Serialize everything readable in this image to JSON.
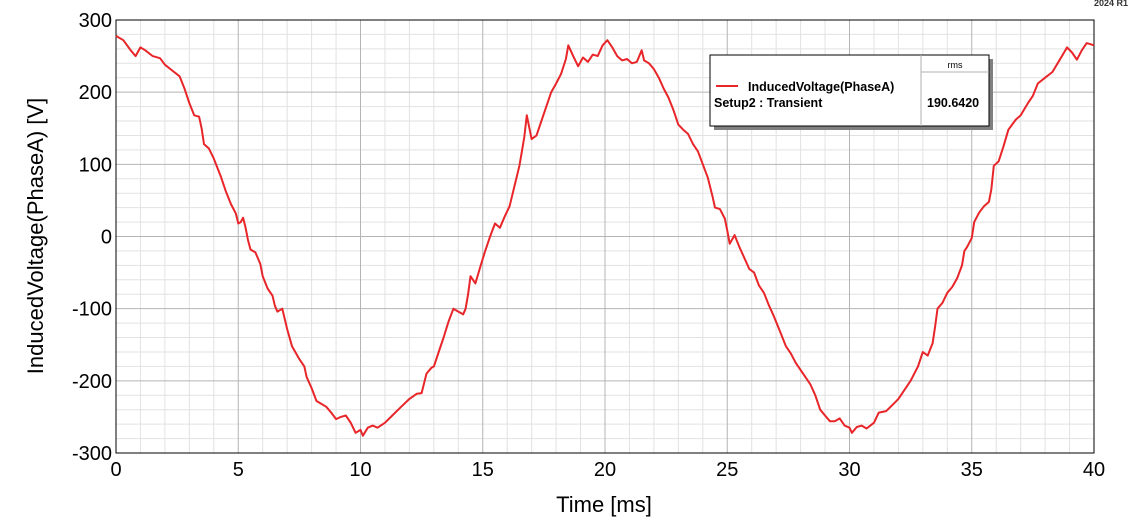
{
  "version_label": "2024 R1",
  "chart_data": {
    "type": "line",
    "title": "",
    "xlabel": "Time [ms]",
    "ylabel": "InducedVoltage(PhaseA) [V]",
    "xlim": [
      0,
      40
    ],
    "ylim": [
      -300,
      300
    ],
    "x_ticks": [
      0,
      5,
      10,
      15,
      20,
      25,
      30,
      35,
      40
    ],
    "y_ticks": [
      -300,
      -200,
      -100,
      0,
      100,
      200,
      300
    ],
    "x_tick_labels": [
      "0",
      "5",
      "10",
      "15",
      "20",
      "25",
      "30",
      "35",
      "40"
    ],
    "y_tick_labels": [
      "-300",
      "-200",
      "-100",
      "0",
      "100",
      "200",
      "300"
    ],
    "grid": true,
    "legend_position": "top-right",
    "series": [
      {
        "name": "InducedVoltage(PhaseA)",
        "color": "#e8262a",
        "points": [
          [
            0,
            278
          ],
          [
            0.3,
            272
          ],
          [
            0.6,
            258
          ],
          [
            0.8,
            250
          ],
          [
            1.0,
            262
          ],
          [
            1.2,
            258
          ],
          [
            1.5,
            250
          ],
          [
            1.8,
            247
          ],
          [
            2.0,
            238
          ],
          [
            2.3,
            230
          ],
          [
            2.6,
            222
          ],
          [
            2.8,
            205
          ],
          [
            3.0,
            185
          ],
          [
            3.2,
            168
          ],
          [
            3.4,
            166
          ],
          [
            3.5,
            150
          ],
          [
            3.6,
            128
          ],
          [
            3.8,
            122
          ],
          [
            4.0,
            108
          ],
          [
            4.3,
            82
          ],
          [
            4.5,
            62
          ],
          [
            4.7,
            45
          ],
          [
            4.9,
            32
          ],
          [
            5.0,
            18
          ],
          [
            5.1,
            20
          ],
          [
            5.2,
            26
          ],
          [
            5.3,
            12
          ],
          [
            5.4,
            -5
          ],
          [
            5.5,
            -18
          ],
          [
            5.7,
            -22
          ],
          [
            5.9,
            -38
          ],
          [
            6.0,
            -55
          ],
          [
            6.2,
            -72
          ],
          [
            6.4,
            -82
          ],
          [
            6.5,
            -96
          ],
          [
            6.6,
            -104
          ],
          [
            6.8,
            -100
          ],
          [
            7.0,
            -128
          ],
          [
            7.2,
            -152
          ],
          [
            7.5,
            -170
          ],
          [
            7.7,
            -180
          ],
          [
            7.8,
            -195
          ],
          [
            8.0,
            -210
          ],
          [
            8.2,
            -228
          ],
          [
            8.4,
            -232
          ],
          [
            8.6,
            -236
          ],
          [
            8.8,
            -244
          ],
          [
            9.0,
            -253
          ],
          [
            9.2,
            -250
          ],
          [
            9.4,
            -248
          ],
          [
            9.6,
            -258
          ],
          [
            9.8,
            -272
          ],
          [
            10.0,
            -268
          ],
          [
            10.1,
            -276
          ],
          [
            10.3,
            -265
          ],
          [
            10.5,
            -262
          ],
          [
            10.7,
            -265
          ],
          [
            11.0,
            -258
          ],
          [
            11.3,
            -248
          ],
          [
            11.6,
            -238
          ],
          [
            12.0,
            -225
          ],
          [
            12.3,
            -218
          ],
          [
            12.5,
            -217
          ],
          [
            12.7,
            -190
          ],
          [
            12.9,
            -182
          ],
          [
            13.0,
            -180
          ],
          [
            13.2,
            -160
          ],
          [
            13.4,
            -140
          ],
          [
            13.6,
            -118
          ],
          [
            13.8,
            -100
          ],
          [
            14.0,
            -104
          ],
          [
            14.2,
            -108
          ],
          [
            14.3,
            -100
          ],
          [
            14.4,
            -80
          ],
          [
            14.5,
            -55
          ],
          [
            14.7,
            -65
          ],
          [
            14.9,
            -42
          ],
          [
            15.1,
            -20
          ],
          [
            15.3,
            0
          ],
          [
            15.5,
            18
          ],
          [
            15.7,
            12
          ],
          [
            15.9,
            28
          ],
          [
            16.1,
            42
          ],
          [
            16.3,
            70
          ],
          [
            16.5,
            98
          ],
          [
            16.6,
            118
          ],
          [
            16.7,
            138
          ],
          [
            16.8,
            168
          ],
          [
            17.0,
            135
          ],
          [
            17.2,
            140
          ],
          [
            17.4,
            160
          ],
          [
            17.6,
            180
          ],
          [
            17.8,
            200
          ],
          [
            18.0,
            212
          ],
          [
            18.2,
            225
          ],
          [
            18.4,
            246
          ],
          [
            18.5,
            265
          ],
          [
            18.7,
            250
          ],
          [
            18.9,
            236
          ],
          [
            19.1,
            248
          ],
          [
            19.3,
            242
          ],
          [
            19.5,
            252
          ],
          [
            19.7,
            250
          ],
          [
            19.9,
            265
          ],
          [
            20.1,
            272
          ],
          [
            20.3,
            262
          ],
          [
            20.5,
            250
          ],
          [
            20.7,
            244
          ],
          [
            20.9,
            246
          ],
          [
            21.1,
            240
          ],
          [
            21.3,
            242
          ],
          [
            21.5,
            258
          ],
          [
            21.6,
            244
          ],
          [
            21.8,
            240
          ],
          [
            22.0,
            232
          ],
          [
            22.2,
            220
          ],
          [
            22.4,
            205
          ],
          [
            22.6,
            192
          ],
          [
            22.8,
            175
          ],
          [
            23.0,
            155
          ],
          [
            23.2,
            148
          ],
          [
            23.4,
            142
          ],
          [
            23.6,
            128
          ],
          [
            23.8,
            118
          ],
          [
            24.0,
            100
          ],
          [
            24.2,
            82
          ],
          [
            24.4,
            55
          ],
          [
            24.5,
            40
          ],
          [
            24.7,
            38
          ],
          [
            24.9,
            25
          ],
          [
            25.0,
            8
          ],
          [
            25.1,
            -10
          ],
          [
            25.3,
            2
          ],
          [
            25.5,
            -15
          ],
          [
            25.7,
            -30
          ],
          [
            25.9,
            -45
          ],
          [
            26.1,
            -50
          ],
          [
            26.3,
            -68
          ],
          [
            26.5,
            -78
          ],
          [
            26.7,
            -95
          ],
          [
            26.9,
            -110
          ],
          [
            27.2,
            -135
          ],
          [
            27.4,
            -152
          ],
          [
            27.6,
            -162
          ],
          [
            27.8,
            -175
          ],
          [
            28.0,
            -185
          ],
          [
            28.2,
            -195
          ],
          [
            28.4,
            -205
          ],
          [
            28.6,
            -220
          ],
          [
            28.8,
            -240
          ],
          [
            29.0,
            -248
          ],
          [
            29.2,
            -256
          ],
          [
            29.4,
            -256
          ],
          [
            29.6,
            -252
          ],
          [
            29.8,
            -262
          ],
          [
            30.0,
            -265
          ],
          [
            30.1,
            -272
          ],
          [
            30.3,
            -264
          ],
          [
            30.5,
            -262
          ],
          [
            30.7,
            -266
          ],
          [
            31.0,
            -258
          ],
          [
            31.2,
            -244
          ],
          [
            31.5,
            -242
          ],
          [
            31.8,
            -232
          ],
          [
            32.0,
            -225
          ],
          [
            32.2,
            -215
          ],
          [
            32.5,
            -200
          ],
          [
            32.8,
            -180
          ],
          [
            33.0,
            -160
          ],
          [
            33.2,
            -165
          ],
          [
            33.4,
            -148
          ],
          [
            33.5,
            -125
          ],
          [
            33.6,
            -100
          ],
          [
            33.8,
            -92
          ],
          [
            34.0,
            -78
          ],
          [
            34.2,
            -70
          ],
          [
            34.4,
            -58
          ],
          [
            34.6,
            -40
          ],
          [
            34.7,
            -20
          ],
          [
            34.8,
            -15
          ],
          [
            35.0,
            -2
          ],
          [
            35.1,
            20
          ],
          [
            35.3,
            33
          ],
          [
            35.5,
            42
          ],
          [
            35.7,
            48
          ],
          [
            35.8,
            65
          ],
          [
            35.9,
            98
          ],
          [
            36.1,
            104
          ],
          [
            36.3,
            125
          ],
          [
            36.5,
            148
          ],
          [
            36.8,
            162
          ],
          [
            37.0,
            168
          ],
          [
            37.3,
            185
          ],
          [
            37.5,
            195
          ],
          [
            37.7,
            212
          ],
          [
            38.0,
            220
          ],
          [
            38.3,
            228
          ],
          [
            38.6,
            245
          ],
          [
            38.9,
            262
          ],
          [
            39.1,
            255
          ],
          [
            39.3,
            245
          ],
          [
            39.5,
            258
          ],
          [
            39.7,
            268
          ],
          [
            40.0,
            265
          ]
        ]
      }
    ],
    "legend_entries": [
      {
        "label": "InducedVoltage(PhaseA)",
        "setup": "Setup2 : Transient",
        "column_header": "rms",
        "value": "190.6420"
      }
    ]
  }
}
